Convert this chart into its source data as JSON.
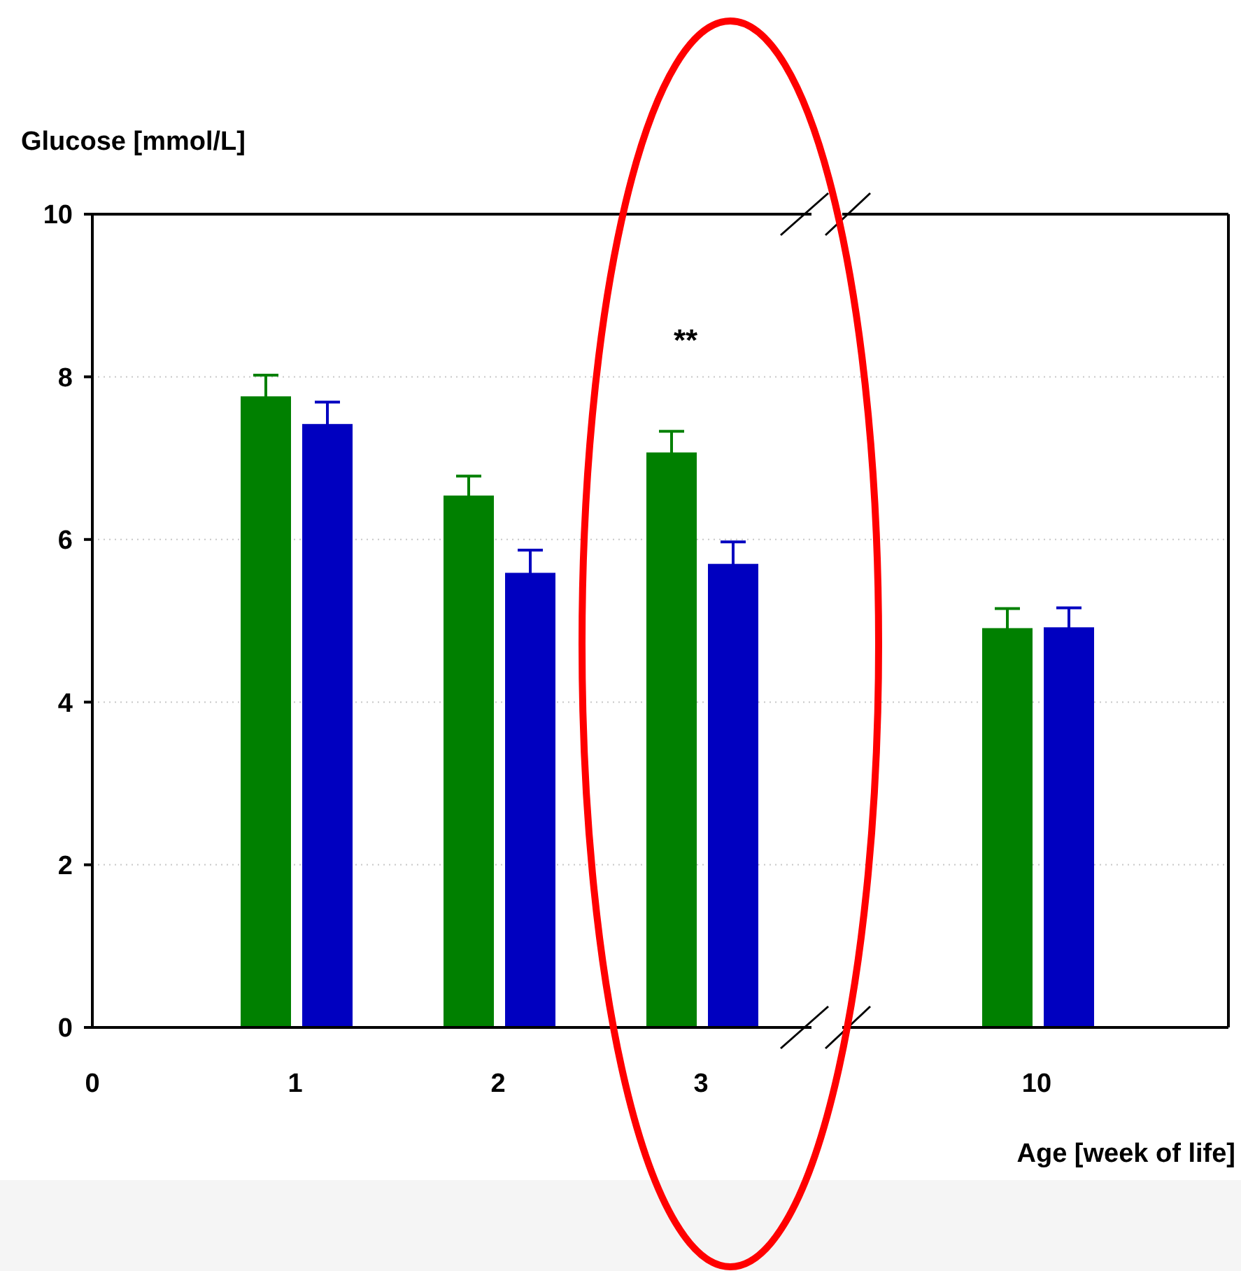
{
  "chart_data": {
    "type": "bar",
    "ylabel": "Glucose [mmol/L]",
    "xlabel": "Age [week of life]",
    "categories": [
      "0",
      "1",
      "2",
      "3",
      "10"
    ],
    "series": [
      {
        "color": "#008000",
        "values": [
          null,
          7.76,
          6.54,
          7.07,
          4.91
        ],
        "errors": [
          null,
          0.26,
          0.24,
          0.26,
          0.24
        ]
      },
      {
        "color": "#0000c0",
        "values": [
          null,
          7.42,
          5.59,
          5.7,
          4.92
        ],
        "errors": [
          null,
          0.27,
          0.28,
          0.27,
          0.24
        ]
      }
    ],
    "ylim": [
      0,
      10
    ],
    "yticks": [
      0,
      2,
      4,
      6,
      8,
      10
    ],
    "grid": "y",
    "annotations": [
      "**"
    ]
  }
}
